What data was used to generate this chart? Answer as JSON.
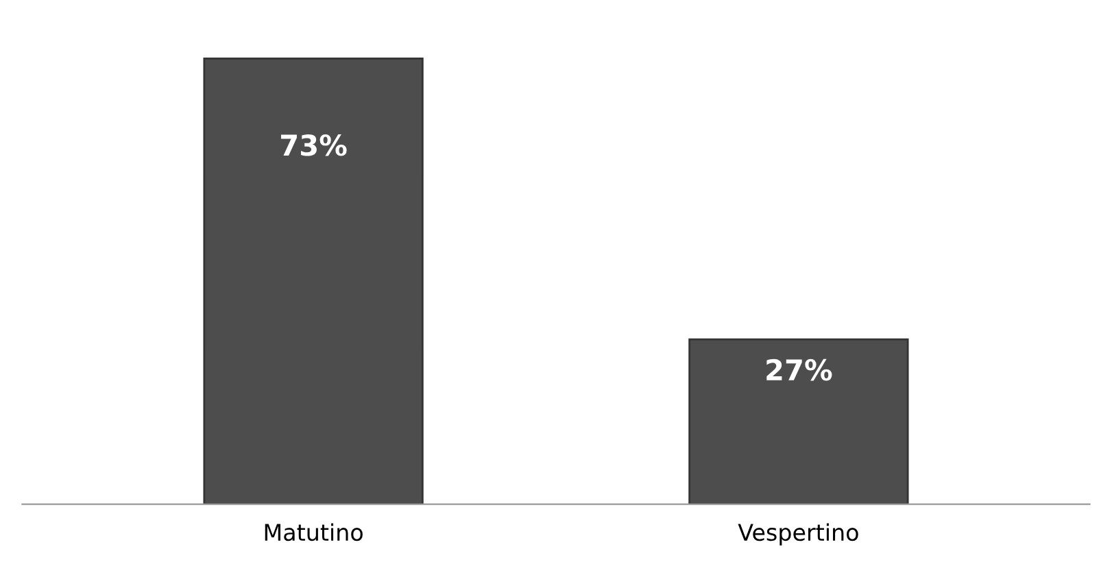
{
  "chart_data": {
    "type": "bar",
    "categories": [
      "Matutino",
      "Vespertino"
    ],
    "values": [
      73,
      27
    ],
    "value_labels": [
      "73%",
      "27%"
    ],
    "color": "#4d4d4d",
    "grid": false
  }
}
